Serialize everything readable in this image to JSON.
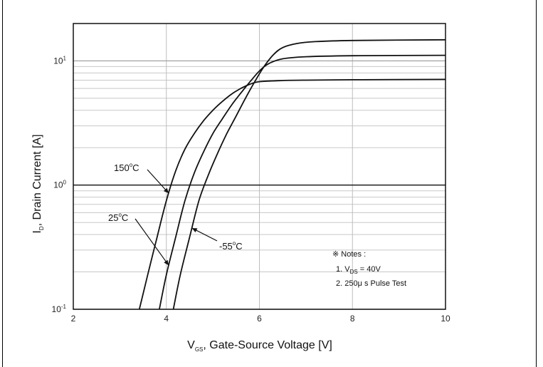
{
  "chart_data": {
    "type": "line",
    "x_scale": "linear",
    "y_scale": "log",
    "xlim": [
      2,
      10
    ],
    "ylim": [
      0.1,
      20
    ],
    "grid": true,
    "x_ticks": [
      2,
      4,
      6,
      8,
      10
    ],
    "x_tick_labels": [
      "2",
      "4",
      "6",
      "8",
      "10"
    ],
    "y_ticks": [
      0.1,
      1,
      10
    ],
    "y_tick_labels": [
      {
        "base": "10",
        "exp": "-1"
      },
      {
        "base": "10",
        "exp": "0"
      },
      {
        "base": "10",
        "exp": "1"
      }
    ],
    "xlabel": {
      "pre": "V",
      "sub": "GS",
      "post": ", Gate-Source Voltage [V]"
    },
    "ylabel": {
      "pre": "I",
      "sub": "D",
      "post": ", Drain Current [A]"
    },
    "series": [
      {
        "name": "150°C",
        "x": [
          3.42,
          3.6,
          3.8,
          4.0,
          4.2,
          4.4,
          4.6,
          4.8,
          5.0,
          5.2,
          5.4,
          5.6,
          5.8,
          6.0,
          6.5,
          7.0,
          8.0,
          10.0
        ],
        "y": [
          0.1,
          0.19,
          0.38,
          0.75,
          1.3,
          1.95,
          2.6,
          3.3,
          4.0,
          4.7,
          5.4,
          6.0,
          6.5,
          6.8,
          6.95,
          7.0,
          7.05,
          7.1
        ]
      },
      {
        "name": "25°C",
        "x": [
          3.85,
          4.0,
          4.2,
          4.4,
          4.6,
          4.8,
          5.0,
          5.2,
          5.4,
          5.6,
          5.8,
          6.0,
          6.2,
          6.5,
          7.0,
          8.0,
          10.0
        ],
        "y": [
          0.1,
          0.19,
          0.38,
          0.75,
          1.25,
          1.85,
          2.6,
          3.4,
          4.4,
          5.5,
          6.8,
          8.3,
          9.5,
          10.4,
          10.8,
          11.0,
          11.1
        ]
      },
      {
        "name": "-55°C",
        "x": [
          4.15,
          4.3,
          4.5,
          4.7,
          4.9,
          5.1,
          5.3,
          5.5,
          5.7,
          5.9,
          6.1,
          6.3,
          6.5,
          6.8,
          7.2,
          8.0,
          10.0
        ],
        "y": [
          0.1,
          0.19,
          0.38,
          0.75,
          1.2,
          1.8,
          2.6,
          3.6,
          5.0,
          6.8,
          9.0,
          11.2,
          12.8,
          13.8,
          14.3,
          14.6,
          14.8
        ]
      }
    ],
    "annotations": [
      {
        "series": "150°C",
        "label": {
          "pre": "150",
          "sup": "o",
          "post": "C"
        },
        "at_x": 4.05
      },
      {
        "series": "25°C",
        "label": {
          "pre": "25",
          "sup": "o",
          "post": "C"
        },
        "at_x": 4.05
      },
      {
        "series": "-55°C",
        "label": {
          "pre": "-55",
          "sup": "o",
          "post": "C"
        },
        "at_x": 4.55
      }
    ],
    "notes": {
      "heading": "※ Notes :",
      "line1": {
        "pre": "1. V",
        "sub": "DS",
        "post": " = 40V"
      },
      "line2": "2. 250μ s Pulse Test"
    }
  }
}
